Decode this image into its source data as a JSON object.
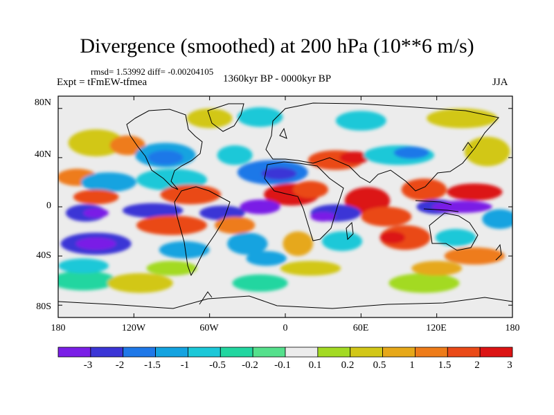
{
  "title": "Divergence (smoothed) at 200 hPa (10**6 m/s)",
  "stats": "rmsd= 1.53992 diff= -0.00204105",
  "experiment": "Expt = tFmEW-tfmea",
  "period": "1360kyr BP - 0000kyr BP",
  "season": "JJA",
  "axes": {
    "lat_ticks": [
      "80N",
      "40N",
      "0",
      "40S",
      "80S"
    ],
    "lon_ticks": [
      "180",
      "120W",
      "60W",
      "0",
      "60E",
      "120E",
      "180"
    ]
  },
  "colorbar": {
    "labels": [
      "-3",
      "-2",
      "-1.5",
      "-1",
      "-0.5",
      "-0.2",
      "-0.1",
      "0.1",
      "0.2",
      "0.5",
      "1",
      "1.5",
      "2",
      "3"
    ],
    "colors": [
      "#7a1fe6",
      "#3b35d6",
      "#1f78e8",
      "#14a3e0",
      "#1cc8d8",
      "#22d6a0",
      "#55e08c",
      "#ececec",
      "#a3da24",
      "#d2c718",
      "#e6a81a",
      "#ee7c1a",
      "#ea4a18",
      "#dc1414"
    ]
  },
  "field": {
    "background": "#ececec",
    "blobs": [
      {
        "c": "#d2c718",
        "lon": -150,
        "lat": 52,
        "a": 22,
        "b": 11
      },
      {
        "c": "#22d6a0",
        "lon": -160,
        "lat": -60,
        "a": 26,
        "b": 8
      },
      {
        "c": "#d2c718",
        "lon": -115,
        "lat": -62,
        "a": 26,
        "b": 8
      },
      {
        "c": "#22d6a0",
        "lon": -20,
        "lat": -62,
        "a": 22,
        "b": 7
      },
      {
        "c": "#a3da24",
        "lon": 110,
        "lat": -62,
        "a": 28,
        "b": 8
      },
      {
        "c": "#d2c718",
        "lon": -60,
        "lat": 72,
        "a": 18,
        "b": 8
      },
      {
        "c": "#d2c718",
        "lon": 140,
        "lat": 72,
        "a": 28,
        "b": 8
      },
      {
        "c": "#1cc8d8",
        "lon": 60,
        "lat": 70,
        "a": 20,
        "b": 8
      },
      {
        "c": "#1cc8d8",
        "lon": -20,
        "lat": 73,
        "a": 18,
        "b": 8
      },
      {
        "c": "#ee7c1a",
        "lon": -125,
        "lat": 50,
        "a": 14,
        "b": 8
      },
      {
        "c": "#14a3e0",
        "lon": -95,
        "lat": 42,
        "a": 24,
        "b": 10
      },
      {
        "c": "#1f78e8",
        "lon": -95,
        "lat": 40,
        "a": 14,
        "b": 6
      },
      {
        "c": "#1cc8d8",
        "lon": -40,
        "lat": 42,
        "a": 14,
        "b": 8
      },
      {
        "c": "#ee7c1a",
        "lon": -165,
        "lat": 24,
        "a": 16,
        "b": 7
      },
      {
        "c": "#14a3e0",
        "lon": -140,
        "lat": 20,
        "a": 22,
        "b": 8
      },
      {
        "c": "#1cc8d8",
        "lon": -90,
        "lat": 22,
        "a": 28,
        "b": 9
      },
      {
        "c": "#ea4a18",
        "lon": 40,
        "lat": 38,
        "a": 22,
        "b": 8
      },
      {
        "c": "#dc1414",
        "lon": 55,
        "lat": 40,
        "a": 12,
        "b": 5
      },
      {
        "c": "#1cc8d8",
        "lon": 90,
        "lat": 42,
        "a": 28,
        "b": 8
      },
      {
        "c": "#1f78e8",
        "lon": 100,
        "lat": 44,
        "a": 14,
        "b": 5
      },
      {
        "c": "#d2c718",
        "lon": 160,
        "lat": 45,
        "a": 18,
        "b": 12
      },
      {
        "c": "#1f78e8",
        "lon": -10,
        "lat": 28,
        "a": 28,
        "b": 10
      },
      {
        "c": "#3b35d6",
        "lon": -5,
        "lat": 27,
        "a": 14,
        "b": 5
      },
      {
        "c": "#dc1414",
        "lon": 5,
        "lat": 10,
        "a": 22,
        "b": 9
      },
      {
        "c": "#ea4a18",
        "lon": 20,
        "lat": 14,
        "a": 14,
        "b": 7
      },
      {
        "c": "#dc1414",
        "lon": 65,
        "lat": 5,
        "a": 18,
        "b": 11
      },
      {
        "c": "#ea4a18",
        "lon": 80,
        "lat": -8,
        "a": 20,
        "b": 8
      },
      {
        "c": "#ea4a18",
        "lon": 110,
        "lat": 14,
        "a": 18,
        "b": 9
      },
      {
        "c": "#dc1414",
        "lon": 150,
        "lat": 12,
        "a": 22,
        "b": 7
      },
      {
        "c": "#ea4a18",
        "lon": -75,
        "lat": 10,
        "a": 24,
        "b": 8
      },
      {
        "c": "#ea4a18",
        "lon": -150,
        "lat": 8,
        "a": 18,
        "b": 6
      },
      {
        "c": "#3b35d6",
        "lon": -158,
        "lat": -5,
        "a": 16,
        "b": 7
      },
      {
        "c": "#7a1fe6",
        "lon": -150,
        "lat": -5,
        "a": 10,
        "b": 4
      },
      {
        "c": "#3b35d6",
        "lon": -105,
        "lat": -3,
        "a": 24,
        "b": 6
      },
      {
        "c": "#3b35d6",
        "lon": -50,
        "lat": -5,
        "a": 18,
        "b": 6
      },
      {
        "c": "#7a1fe6",
        "lon": -20,
        "lat": 0,
        "a": 16,
        "b": 6
      },
      {
        "c": "#3b35d6",
        "lon": 40,
        "lat": -5,
        "a": 20,
        "b": 7
      },
      {
        "c": "#7a1fe6",
        "lon": 30,
        "lat": -8,
        "a": 10,
        "b": 4
      },
      {
        "c": "#3b35d6",
        "lon": 120,
        "lat": 0,
        "a": 16,
        "b": 6
      },
      {
        "c": "#7a1fe6",
        "lon": 140,
        "lat": 0,
        "a": 24,
        "b": 5
      },
      {
        "c": "#14a3e0",
        "lon": 170,
        "lat": -10,
        "a": 14,
        "b": 8
      },
      {
        "c": "#ea4a18",
        "lon": -90,
        "lat": -15,
        "a": 28,
        "b": 8
      },
      {
        "c": "#ee7c1a",
        "lon": -40,
        "lat": -15,
        "a": 16,
        "b": 7
      },
      {
        "c": "#3b35d6",
        "lon": -150,
        "lat": -30,
        "a": 28,
        "b": 9
      },
      {
        "c": "#7a1fe6",
        "lon": -150,
        "lat": -30,
        "a": 16,
        "b": 5
      },
      {
        "c": "#14a3e0",
        "lon": -80,
        "lat": -35,
        "a": 20,
        "b": 7
      },
      {
        "c": "#14a3e0",
        "lon": -30,
        "lat": -30,
        "a": 16,
        "b": 9
      },
      {
        "c": "#14a3e0",
        "lon": -15,
        "lat": -42,
        "a": 16,
        "b": 6
      },
      {
        "c": "#e6a81a",
        "lon": 10,
        "lat": -30,
        "a": 12,
        "b": 10
      },
      {
        "c": "#1cc8d8",
        "lon": 45,
        "lat": -28,
        "a": 16,
        "b": 8
      },
      {
        "c": "#ea4a18",
        "lon": 95,
        "lat": -25,
        "a": 20,
        "b": 10
      },
      {
        "c": "#dc1414",
        "lon": 85,
        "lat": -25,
        "a": 10,
        "b": 5
      },
      {
        "c": "#1cc8d8",
        "lon": 135,
        "lat": -25,
        "a": 16,
        "b": 7
      },
      {
        "c": "#ee7c1a",
        "lon": 150,
        "lat": -40,
        "a": 24,
        "b": 7
      },
      {
        "c": "#1cc8d8",
        "lon": -160,
        "lat": -48,
        "a": 20,
        "b": 6
      },
      {
        "c": "#a3da24",
        "lon": -90,
        "lat": -50,
        "a": 20,
        "b": 6
      },
      {
        "c": "#d2c718",
        "lon": 20,
        "lat": -50,
        "a": 24,
        "b": 6
      },
      {
        "c": "#e6a81a",
        "lon": 120,
        "lat": -50,
        "a": 20,
        "b": 6
      }
    ]
  }
}
